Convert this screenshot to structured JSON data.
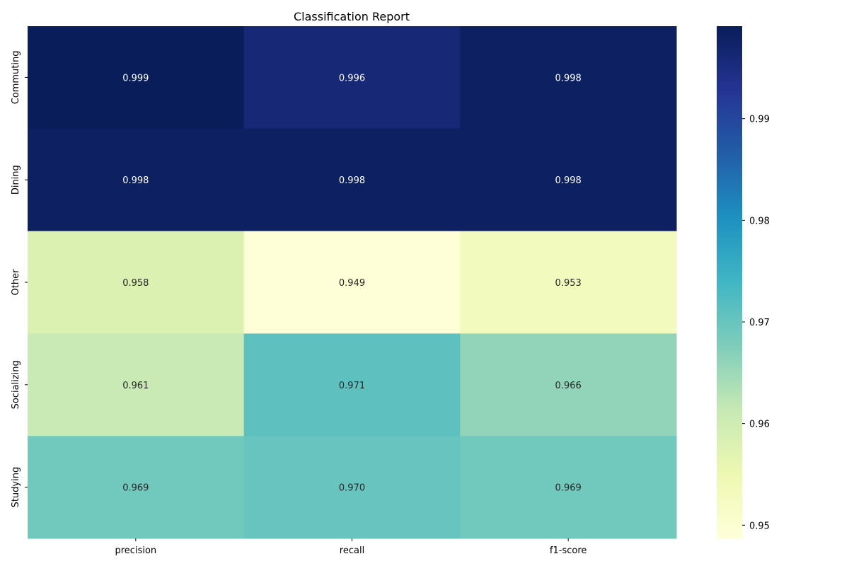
{
  "chart_data": {
    "type": "heatmap",
    "title": "Classification Report",
    "xlabel": "",
    "ylabel": "",
    "columns": [
      "precision",
      "recall",
      "f1-score"
    ],
    "rows": [
      "Commuting",
      "Dining",
      "Other",
      "Socializing",
      "Studying"
    ],
    "values": [
      [
        0.999,
        0.996,
        0.998
      ],
      [
        0.998,
        0.998,
        0.998
      ],
      [
        0.958,
        0.949,
        0.953
      ],
      [
        0.961,
        0.971,
        0.966
      ],
      [
        0.969,
        0.97,
        0.969
      ]
    ],
    "value_labels": [
      [
        "0.999",
        "0.996",
        "0.998"
      ],
      [
        "0.998",
        "0.998",
        "0.998"
      ],
      [
        "0.958",
        "0.949",
        "0.953"
      ],
      [
        "0.961",
        "0.971",
        "0.966"
      ],
      [
        "0.969",
        "0.970",
        "0.969"
      ]
    ],
    "colormap": "YlGnBu",
    "vmin": 0.9487,
    "vmax": 0.9991,
    "colorbar_ticks": [
      0.95,
      0.96,
      0.97,
      0.98,
      0.99
    ],
    "colorbar_tick_labels": [
      "0.95",
      "0.96",
      "0.97",
      "0.98",
      "0.99"
    ]
  }
}
